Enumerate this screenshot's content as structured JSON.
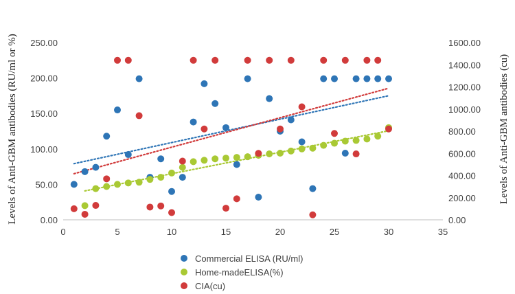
{
  "chart_data": {
    "type": "scatter",
    "x_axis": {
      "min": 0,
      "max": 35,
      "step": 5,
      "ticks": [
        "0",
        "5",
        "10",
        "15",
        "20",
        "25",
        "30",
        "35"
      ]
    },
    "y_left": {
      "label": "Levels of Anti-GBM antibodies (RU/ml or %)",
      "min": 0,
      "max": 250,
      "step": 50,
      "ticks": [
        "0.00",
        "50.00",
        "100.00",
        "150.00",
        "200.00",
        "250.00"
      ]
    },
    "y_right": {
      "label": "Levels of Anti-GBM antibodies (cu)",
      "min": 0,
      "max": 1600,
      "step": 200,
      "ticks": [
        "0.00",
        "200.00",
        "400.00",
        "600.00",
        "800.00",
        "1000.00",
        "1200.00",
        "1400.00",
        "1600.00"
      ]
    },
    "grid": false,
    "legend_position": "bottom",
    "series": [
      {
        "name": "Commercial ELISA (RU/ml)",
        "axis": "left",
        "color": "#2e75b6",
        "trendline": true,
        "points": [
          [
            1,
            50
          ],
          [
            2,
            68
          ],
          [
            3,
            74
          ],
          [
            4,
            118
          ],
          [
            5,
            155
          ],
          [
            6,
            92
          ],
          [
            7,
            199
          ],
          [
            8,
            60
          ],
          [
            9,
            86
          ],
          [
            10,
            40
          ],
          [
            11,
            60
          ],
          [
            12,
            138
          ],
          [
            13,
            192
          ],
          [
            14,
            164
          ],
          [
            15,
            130
          ],
          [
            16,
            78
          ],
          [
            17,
            199
          ],
          [
            18,
            32
          ],
          [
            19,
            171
          ],
          [
            20,
            125
          ],
          [
            21,
            141
          ],
          [
            22,
            110
          ],
          [
            23,
            44
          ],
          [
            24,
            199
          ],
          [
            25,
            199
          ],
          [
            26,
            94
          ],
          [
            27,
            199
          ],
          [
            28,
            199
          ],
          [
            29,
            199
          ],
          [
            30,
            199
          ]
        ]
      },
      {
        "name": "Home-madeELISA(%)",
        "axis": "left",
        "color": "#a9c934",
        "trendline": true,
        "points": [
          [
            2,
            20
          ],
          [
            3,
            44
          ],
          [
            4,
            47
          ],
          [
            5,
            50
          ],
          [
            6,
            52
          ],
          [
            7,
            53
          ],
          [
            8,
            57
          ],
          [
            9,
            60
          ],
          [
            10,
            66
          ],
          [
            11,
            74
          ],
          [
            12,
            82
          ],
          [
            13,
            84
          ],
          [
            14,
            86
          ],
          [
            15,
            87
          ],
          [
            16,
            88
          ],
          [
            17,
            89
          ],
          [
            18,
            91
          ],
          [
            19,
            93
          ],
          [
            20,
            94
          ],
          [
            21,
            97
          ],
          [
            22,
            100
          ],
          [
            23,
            101
          ],
          [
            24,
            105
          ],
          [
            25,
            108
          ],
          [
            26,
            111
          ],
          [
            27,
            112
          ],
          [
            28,
            114
          ],
          [
            29,
            118
          ],
          [
            30,
            130
          ]
        ]
      },
      {
        "name": "CIA(cu)",
        "axis": "right",
        "color": "#d13b3b",
        "trendline": true,
        "points": [
          [
            1,
            100
          ],
          [
            2,
            50
          ],
          [
            3,
            130
          ],
          [
            4,
            370
          ],
          [
            5,
            1440
          ],
          [
            6,
            1440
          ],
          [
            7,
            940
          ],
          [
            8,
            115
          ],
          [
            9,
            125
          ],
          [
            10,
            65
          ],
          [
            11,
            530
          ],
          [
            12,
            1440
          ],
          [
            13,
            820
          ],
          [
            14,
            1440
          ],
          [
            15,
            105
          ],
          [
            16,
            190
          ],
          [
            17,
            1440
          ],
          [
            18,
            600
          ],
          [
            19,
            1440
          ],
          [
            20,
            820
          ],
          [
            21,
            1440
          ],
          [
            22,
            1020
          ],
          [
            23,
            45
          ],
          [
            24,
            1440
          ],
          [
            25,
            780
          ],
          [
            26,
            1440
          ],
          [
            27,
            595
          ],
          [
            28,
            1440
          ],
          [
            29,
            1440
          ],
          [
            30,
            820
          ]
        ]
      }
    ]
  }
}
